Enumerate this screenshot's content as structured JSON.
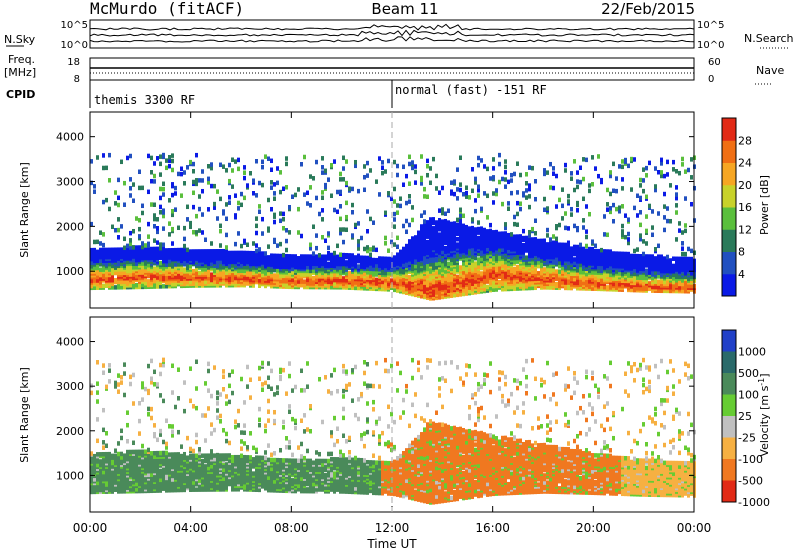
{
  "header": {
    "site": "McMurdo (fitACF)",
    "beam": "Beam 11",
    "date": "22/Feb/2015"
  },
  "status_panel": {
    "nsky_label": "N.Sky",
    "nsearch_label": "N.Search",
    "freq_label_line1": "Freq.",
    "freq_label_line2": "[MHz]",
    "nave_label": "Nave",
    "cpid_label": "CPID",
    "nsky_ticks": [
      "10^5",
      "10^0"
    ],
    "nsearch_ticks": [
      "10^5",
      "10^0"
    ],
    "freq_ticks": [
      "18",
      "8"
    ],
    "nave_ticks": [
      "60",
      "0"
    ],
    "cpid_segments": [
      {
        "label": "themis 3300 RF",
        "start_hour": 0
      },
      {
        "label": "normal (fast) -151 RF",
        "start_hour": 12
      }
    ]
  },
  "chart_data": [
    {
      "type": "heatmap",
      "title": "",
      "xlabel": "",
      "ylabel": "Slant Range [km]",
      "xlim": [
        0,
        24
      ],
      "ylim": [
        180,
        4550
      ],
      "yticks": [
        1000,
        2000,
        3000,
        4000
      ],
      "grid": false,
      "colorbar": {
        "label": "Power [dB]",
        "range": [
          0,
          32
        ],
        "ticks": [
          "28",
          "24",
          "20",
          "16",
          "12",
          "8",
          "4"
        ],
        "tick_values": [
          28,
          24,
          20,
          16,
          12,
          8,
          4
        ],
        "colors": [
          "#0a1ae6",
          "#2150c0",
          "#2a7a5a",
          "#5abf3c",
          "#c8d22a",
          "#f6a623",
          "#f06f14",
          "#e22a16"
        ]
      },
      "echo_band": [
        {
          "hour": 0,
          "low": 640,
          "high": 1500,
          "core": 850
        },
        {
          "hour": 2,
          "low": 660,
          "high": 1550,
          "core": 900
        },
        {
          "hour": 4,
          "low": 690,
          "high": 1480,
          "core": 880
        },
        {
          "hour": 6,
          "low": 700,
          "high": 1450,
          "core": 860
        },
        {
          "hour": 8,
          "low": 660,
          "high": 1350,
          "core": 800
        },
        {
          "hour": 10,
          "low": 650,
          "high": 1380,
          "core": 820
        },
        {
          "hour": 12,
          "low": 600,
          "high": 1300,
          "core": 780
        },
        {
          "hour": 13.5,
          "low": 400,
          "high": 2200,
          "core": 600
        },
        {
          "hour": 16,
          "low": 600,
          "high": 1900,
          "core": 950
        },
        {
          "hour": 18,
          "low": 650,
          "high": 1700,
          "core": 850
        },
        {
          "hour": 20,
          "low": 620,
          "high": 1500,
          "core": 750
        },
        {
          "hour": 22,
          "low": 580,
          "high": 1350,
          "core": 680
        },
        {
          "hour": 24,
          "low": 560,
          "high": 1300,
          "core": 650
        }
      ]
    },
    {
      "type": "heatmap",
      "title": "",
      "xlabel": "Time UT",
      "ylabel": "Slant Range [km]",
      "xlim": [
        0,
        24
      ],
      "ylim": [
        180,
        4550
      ],
      "yticks": [
        1000,
        2000,
        3000,
        4000
      ],
      "xticks": [
        "00:00",
        "04:00",
        "08:00",
        "12:00",
        "16:00",
        "20:00",
        "00:00"
      ],
      "xtick_hours": [
        0,
        4,
        8,
        12,
        16,
        20,
        24
      ],
      "grid": false,
      "colorbar": {
        "label": "Velocity [m s^-1]",
        "ticks": [
          "1000",
          "500",
          "100",
          "25",
          "-25",
          "-100",
          "-500",
          "-1000"
        ],
        "colors": [
          "#2140c8",
          "#2a6a6a",
          "#4a8a5a",
          "#66cc33",
          "#c0c0c0",
          "#f6b042",
          "#f07820",
          "#e22a16"
        ]
      },
      "velocity_regimes": [
        {
          "start_hour": 0,
          "end_hour": 11.5,
          "class": "100 to 500",
          "color": "#4a8a5a"
        },
        {
          "start_hour": 11.5,
          "end_hour": 21,
          "class": "-100 to -500",
          "color": "#f07820"
        },
        {
          "start_hour": 21,
          "end_hour": 24,
          "class": "-25 to -100",
          "color": "#f6b042"
        }
      ]
    }
  ]
}
